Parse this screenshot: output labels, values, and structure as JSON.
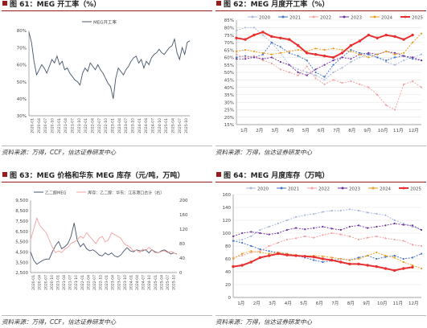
{
  "colors": {
    "accent": "#9b1b1b",
    "line_blue": "#44546a",
    "grid": "#d9d9d9"
  },
  "panels": [
    {
      "title": "图 61：MEG 开工率（%）",
      "source": "资料来源：万得，CCF，信达证券研发中心"
    },
    {
      "title": "图 62：MEG 月度开工率（%）",
      "source": "资料来源：万得，信达证券研发中心"
    },
    {
      "title": "图 63：MEG 价格和华东 MEG 库存（元/吨，万吨）",
      "source": "资料来源：万得，CCF，信达证券研发中心"
    },
    {
      "title": "图 64：MEG 月度库存（万吨）",
      "source": "资料来源：万得，信达证券研发中心"
    }
  ],
  "chart_data": [
    {
      "type": "line",
      "ylim": [
        30,
        80
      ],
      "yticks": [
        "30%",
        "40%",
        "50%",
        "60%",
        "70%",
        "80%"
      ],
      "xticks": [
        "2020-01",
        "2020-04",
        "2020-07",
        "2020-10",
        "2021-01",
        "2021-04",
        "2021-07",
        "2021-10",
        "2022-01",
        "2022-04",
        "2022-07",
        "2022-10",
        "2023-01",
        "2023-04",
        "2023-07",
        "2023-10",
        "2024-01",
        "2024-04",
        "2024-07",
        "2024-10",
        "2025-01",
        "2025-04",
        "2025-07",
        "2025-10"
      ],
      "legend_position": "top-center",
      "series": [
        {
          "name": "MEG开工率",
          "color": "#44546a",
          "values": [
            79,
            73,
            62,
            54,
            57,
            60,
            58,
            55,
            59,
            63,
            61,
            65,
            60,
            62,
            57,
            58,
            55,
            53,
            51,
            50,
            48,
            55,
            58,
            56,
            61,
            59,
            57,
            60,
            57,
            55,
            52,
            49,
            47,
            40,
            52,
            58,
            56,
            54,
            57,
            59,
            62,
            64,
            65,
            61,
            63,
            58,
            62,
            60,
            64,
            66,
            67,
            69,
            67,
            66,
            68,
            70,
            71,
            75,
            67,
            63,
            70,
            66,
            73,
            74
          ]
        }
      ]
    },
    {
      "type": "line",
      "ylim": [
        15,
        85
      ],
      "yticks": [
        "15%",
        "20%",
        "25%",
        "30%",
        "35%",
        "40%",
        "45%",
        "50%",
        "55%",
        "60%",
        "65%",
        "70%",
        "75%",
        "80%",
        "85%"
      ],
      "xticks": [
        "1月",
        "2月",
        "3月",
        "4月",
        "5月",
        "6月",
        "7月",
        "8月",
        "9月",
        "10月",
        "11月",
        "12月"
      ],
      "legend_position": "top",
      "series": [
        {
          "name": "2020",
          "color": "#a9b7d8",
          "values": [
            78,
            80,
            80,
            75,
            70,
            63,
            55,
            52,
            50,
            48,
            45,
            50,
            53,
            57,
            60,
            62,
            60,
            57,
            55,
            58,
            60,
            62
          ]
        },
        {
          "name": "2021",
          "color": "#4472c4",
          "values": [
            60,
            61,
            60,
            62,
            70,
            67,
            63,
            61,
            58,
            50,
            47,
            55,
            60,
            65,
            63,
            62,
            60,
            58,
            60,
            61,
            59,
            58
          ]
        },
        {
          "name": "2022",
          "color": "#f4a0a0",
          "values": [
            62,
            60,
            61,
            58,
            56,
            52,
            50,
            48,
            54,
            46,
            42,
            45,
            43,
            44,
            42,
            40,
            35,
            28,
            25,
            42,
            44,
            40
          ]
        },
        {
          "name": "2023",
          "color": "#7030a0",
          "values": [
            59,
            59,
            60,
            59,
            60,
            57,
            55,
            50,
            48,
            52,
            55,
            58,
            60,
            59,
            62,
            63,
            62,
            64,
            63,
            61,
            60,
            58
          ]
        },
        {
          "name": "2024",
          "color": "#ed9b1b",
          "values": [
            64,
            65,
            64,
            63,
            62,
            63,
            64,
            65,
            64,
            66,
            65,
            66,
            65,
            64,
            62,
            60,
            62,
            64,
            62,
            63,
            70,
            76
          ]
        },
        {
          "name": "2025",
          "color": "#e83030",
          "values": [
            73,
            72,
            75,
            77,
            74,
            73,
            72,
            68,
            63,
            62,
            61,
            60,
            63,
            68,
            71,
            75,
            73,
            75,
            74,
            72,
            75
          ]
        }
      ]
    },
    {
      "type": "line",
      "ylim": [
        2500,
        9500
      ],
      "y2lim": [
        0,
        200
      ],
      "yticks": [
        "2,500",
        "3,500",
        "4,500",
        "5,500",
        "6,500",
        "7,500",
        "8,500",
        "9,500"
      ],
      "y2ticks": [
        "0",
        "40",
        "80",
        "120",
        "160",
        "200"
      ],
      "xticks": [
        "2020-01",
        "2020-04",
        "2020-07",
        "2020-10",
        "2021-01",
        "2021-04",
        "2021-07",
        "2021-10",
        "2022-01",
        "2022-04",
        "2022-07",
        "2022-10",
        "2023-01",
        "2023-04",
        "2023-07",
        "2023-10",
        "2024-01",
        "2024-04",
        "2024-07",
        "2024-10",
        "2025-01",
        "2025-04",
        "2025-07",
        "2025-10"
      ],
      "legend_position": "top",
      "series": [
        {
          "name": "乙二醇MEG",
          "color": "#44546a",
          "axis": "left",
          "values": [
            4500,
            3700,
            3300,
            3500,
            3700,
            3800,
            3800,
            4500,
            5100,
            5500,
            4800,
            5000,
            5300,
            6000,
            7300,
            5600,
            5000,
            5300,
            4800,
            4600,
            4700,
            4500,
            4200,
            4100,
            4400,
            4200,
            4400,
            4100,
            4000,
            4200,
            4600,
            4900,
            4600,
            4500,
            4700,
            4600,
            4600,
            4700,
            4400,
            4700,
            4500,
            4400,
            4600,
            4700,
            4500,
            4300,
            4400,
            4300
          ]
        },
        {
          "name": "库存：乙二醇：华东：江苏港口合计（右）",
          "color": "#f4a0a0",
          "axis": "right",
          "values": [
            90,
            120,
            150,
            130,
            120,
            110,
            90,
            70,
            55,
            60,
            55,
            65,
            70,
            80,
            85,
            90,
            100,
            95,
            110,
            100,
            90,
            80,
            95,
            100,
            85,
            90,
            110,
            105,
            100,
            95,
            80,
            75,
            70,
            60,
            62,
            55,
            65,
            60,
            70,
            62,
            55,
            55,
            58,
            60,
            55,
            58,
            55,
            50
          ]
        }
      ]
    },
    {
      "type": "line",
      "ylim": [
        0,
        160
      ],
      "yticks": [
        "0",
        "20",
        "40",
        "60",
        "80",
        "100",
        "120",
        "140",
        "160"
      ],
      "xticks": [
        "1月",
        "2月",
        "3月",
        "4月",
        "5月",
        "6月",
        "7月",
        "8月",
        "9月",
        "10月",
        "11月",
        "12月"
      ],
      "legend_position": "top",
      "series": [
        {
          "name": "2020",
          "color": "#a9b7d8",
          "values": [
            88,
            90,
            95,
            105,
            110,
            115,
            120,
            125,
            128,
            130,
            133,
            135,
            135,
            137,
            135,
            132,
            130,
            128,
            120,
            115,
            110,
            105
          ]
        },
        {
          "name": "2021",
          "color": "#4472c4",
          "values": [
            88,
            85,
            80,
            75,
            72,
            70,
            68,
            65,
            62,
            58,
            55,
            57,
            60,
            58,
            62,
            65,
            60,
            63,
            65,
            60,
            62,
            68
          ]
        },
        {
          "name": "2022",
          "color": "#f4a0a0",
          "values": [
            62,
            65,
            70,
            72,
            80,
            85,
            90,
            92,
            95,
            93,
            97,
            100,
            98,
            95,
            90,
            93,
            95,
            92,
            90,
            88,
            82,
            80
          ]
        },
        {
          "name": "2023",
          "color": "#7030a0",
          "values": [
            95,
            100,
            102,
            100,
            98,
            100,
            105,
            108,
            106,
            108,
            110,
            107,
            105,
            110,
            112,
            108,
            110,
            112,
            115,
            113,
            112,
            105
          ]
        },
        {
          "name": "2024",
          "color": "#ed9b1b",
          "values": [
            60,
            68,
            72,
            70,
            68,
            70,
            68,
            66,
            64,
            65,
            64,
            62,
            60,
            58,
            60,
            65,
            70,
            65,
            62,
            55,
            50,
            45
          ]
        },
        {
          "name": "2025",
          "color": "#e83030",
          "values": [
            48,
            50,
            55,
            62,
            65,
            68,
            66,
            65,
            64,
            63,
            60,
            58,
            55,
            52,
            52,
            50,
            48,
            45,
            42,
            45,
            47
          ]
        }
      ]
    }
  ]
}
